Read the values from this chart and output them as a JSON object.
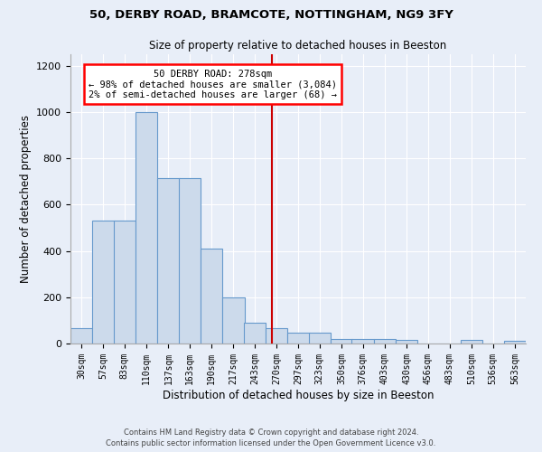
{
  "title1": "50, DERBY ROAD, BRAMCOTE, NOTTINGHAM, NG9 3FY",
  "title2": "Size of property relative to detached houses in Beeston",
  "xlabel": "Distribution of detached houses by size in Beeston",
  "ylabel": "Number of detached properties",
  "bar_color": "#ccdaeb",
  "bar_edge_color": "#6699cc",
  "bg_color": "#e8eef8",
  "grid_color": "#ffffff",
  "marker_value": 278,
  "marker_color": "#cc0000",
  "annotation_title": "50 DERBY ROAD: 278sqm",
  "annotation_line1": "← 98% of detached houses are smaller (3,084)",
  "annotation_line2": "2% of semi-detached houses are larger (68) →",
  "bin_labels": [
    "30sqm",
    "57sqm",
    "83sqm",
    "110sqm",
    "137sqm",
    "163sqm",
    "190sqm",
    "217sqm",
    "243sqm",
    "270sqm",
    "297sqm",
    "323sqm",
    "350sqm",
    "376sqm",
    "403sqm",
    "430sqm",
    "456sqm",
    "483sqm",
    "510sqm",
    "536sqm",
    "563sqm"
  ],
  "bin_edges": [
    30,
    57,
    83,
    110,
    137,
    163,
    190,
    217,
    243,
    270,
    297,
    323,
    350,
    376,
    403,
    430,
    456,
    483,
    510,
    536,
    563,
    590
  ],
  "bar_heights": [
    65,
    530,
    530,
    1000,
    715,
    715,
    410,
    200,
    90,
    65,
    45,
    45,
    20,
    20,
    20,
    15,
    0,
    0,
    15,
    0,
    10
  ],
  "footer1": "Contains HM Land Registry data © Crown copyright and database right 2024.",
  "footer2": "Contains public sector information licensed under the Open Government Licence v3.0.",
  "ylim": [
    0,
    1250
  ],
  "yticks": [
    0,
    200,
    400,
    600,
    800,
    1000,
    1200
  ]
}
